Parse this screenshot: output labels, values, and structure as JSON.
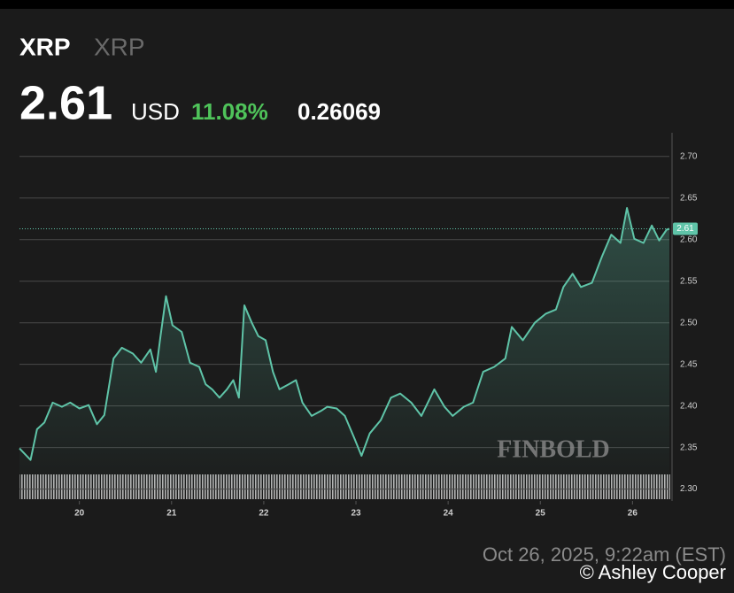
{
  "header": {
    "symbol": "XRP",
    "name": "XRP",
    "price": "2.61",
    "currency": "USD",
    "change_pct": "11.08%",
    "change": "0.26069"
  },
  "chart_data": {
    "type": "line",
    "color": "#5fc4a8",
    "grid": true,
    "x": [
      19.35,
      19.47,
      19.54,
      19.62,
      19.71,
      19.81,
      19.9,
      20.0,
      20.1,
      20.19,
      20.27,
      20.37,
      20.46,
      20.58,
      20.67,
      20.77,
      20.83,
      20.88,
      20.94,
      21.01,
      21.11,
      21.2,
      21.3,
      21.37,
      21.44,
      21.52,
      21.6,
      21.67,
      21.73,
      21.79,
      21.87,
      21.94,
      22.02,
      22.1,
      22.17,
      22.27,
      22.35,
      22.42,
      22.52,
      22.62,
      22.69,
      22.79,
      22.88,
      22.98,
      23.06,
      23.15,
      23.27,
      23.38,
      23.48,
      23.6,
      23.71,
      23.85,
      23.96,
      24.05,
      24.17,
      24.27,
      24.38,
      24.5,
      24.62,
      24.69,
      24.81,
      24.94,
      25.06,
      25.17,
      25.25,
      25.35,
      25.44,
      25.56,
      25.67,
      25.77,
      25.87,
      25.94,
      26.02,
      26.12,
      26.21,
      26.29,
      26.37,
      26.4
    ],
    "values": [
      2.349,
      2.335,
      2.372,
      2.38,
      2.404,
      2.399,
      2.404,
      2.397,
      2.401,
      2.378,
      2.389,
      2.457,
      2.47,
      2.463,
      2.452,
      2.468,
      2.441,
      2.484,
      2.532,
      2.497,
      2.489,
      2.452,
      2.447,
      2.426,
      2.42,
      2.41,
      2.42,
      2.431,
      2.41,
      2.521,
      2.5,
      2.484,
      2.479,
      2.441,
      2.42,
      2.426,
      2.431,
      2.404,
      2.388,
      2.394,
      2.399,
      2.397,
      2.388,
      2.362,
      2.34,
      2.367,
      2.383,
      2.41,
      2.415,
      2.404,
      2.388,
      2.42,
      2.399,
      2.388,
      2.399,
      2.404,
      2.441,
      2.447,
      2.457,
      2.495,
      2.479,
      2.5,
      2.511,
      2.516,
      2.543,
      2.559,
      2.543,
      2.548,
      2.58,
      2.606,
      2.596,
      2.638,
      2.601,
      2.596,
      2.617,
      2.599,
      2.612,
      2.613
    ],
    "xlim": [
      19.35,
      26.4
    ],
    "xticks": [
      20,
      21,
      22,
      23,
      24,
      {
        "value": 25,
        "label": "25"
      },
      26
    ],
    "ylim": [
      2.29,
      2.72
    ],
    "yticks": [
      {
        "value": 2.3,
        "label": "2.30"
      },
      2.35,
      {
        "value": 2.4,
        "label": "2.40"
      },
      2.45,
      {
        "value": 2.5,
        "label": "2.50"
      },
      2.55,
      {
        "value": 2.6,
        "label": "2.60"
      },
      2.65,
      {
        "value": 2.7,
        "label": "2.70"
      }
    ],
    "watermark": "FINBOLD"
  },
  "footer": {
    "timestamp": "Oct 26, 2025, 9:22am (EST)",
    "credit": "© Ashley Cooper"
  }
}
